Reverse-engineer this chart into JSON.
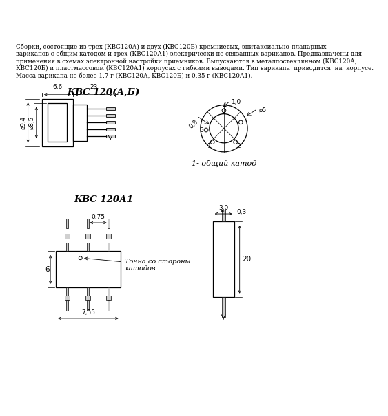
{
  "title_text": "Сборки, состоящие из трех (КВС120А) и двух (КВС120Б) кремниевых, эпитаксиально-планарных\nварикапов с общим катодом и трех (КВС120А1) электрически не связанных варикапов. Предназначены для\nприменения в схемах электронной настройки приемников. Выпускаются в металлостеклянном (КВС120А,\nКВС120Б) и пластмассовом (КВС120А1) корпусах с гибкими выводами. Тип варикапа  приводится  на  корпусе.\nМасса варикапа не более 1,7 г (КВС120А, КВС120Б) и 0,35 г (КВС120А1).",
  "label_kvc120ab": "КВС 120(А,Б)",
  "label_kvc120a1": "КВС 120А1",
  "label_1_obsh": "1- общий катод",
  "label_tochka": "Точна со стороны\nкатодов",
  "dim_66": "6,6",
  "dim_23": "23",
  "dim_d94": "ø9,4",
  "dim_d85": "ø8,5",
  "dim_10": "1,0",
  "dim_d5": "ø5",
  "dim_08": "0,8",
  "dim_075": "0,75",
  "dim_755": "7,55",
  "dim_6": "6",
  "dim_30": "3,0",
  "dim_03": "0,3",
  "dim_20": "20",
  "bg_color": "#ffffff",
  "line_color": "#000000",
  "text_color": "#000000"
}
